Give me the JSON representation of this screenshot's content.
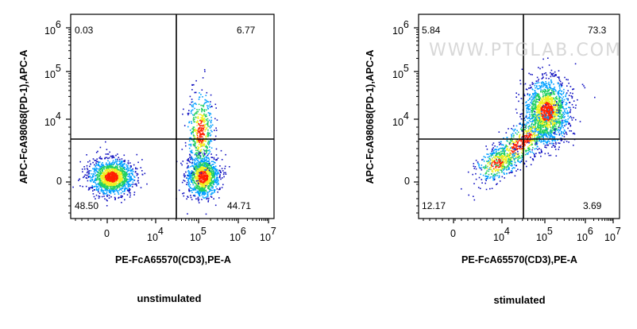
{
  "chart_data": [
    {
      "type": "scatter",
      "subtype": "flow-cytometry density dot plot",
      "caption": "unstimulated",
      "xlabel": "PE-FcA65570(CD3),PE-A",
      "ylabel": "APC-FcA98068(PD-1),APC-A",
      "x_scale": "biexponential",
      "y_scale": "biexponential",
      "x_ticks": [
        {
          "base": "0",
          "exp": ""
        },
        {
          "base": "10",
          "exp": "4"
        },
        {
          "base": "10",
          "exp": "5"
        },
        {
          "base": "10",
          "exp": "6"
        },
        {
          "base": "10",
          "exp": "7"
        }
      ],
      "y_ticks": [
        {
          "base": "0",
          "exp": ""
        },
        {
          "base": "10",
          "exp": "4"
        },
        {
          "base": "10",
          "exp": "5"
        },
        {
          "base": "10",
          "exp": "6"
        }
      ],
      "quadrants": {
        "upper_left": "0.03",
        "upper_right": "6.77",
        "lower_left": "48.50",
        "lower_right": "44.71"
      },
      "colormap": [
        "#1010c0",
        "#00a0ff",
        "#20d060",
        "#f0f020",
        "#ff2000"
      ]
    },
    {
      "type": "scatter",
      "subtype": "flow-cytometry density dot plot",
      "caption": "stimulated",
      "xlabel": "PE-FcA65570(CD3),PE-A",
      "ylabel": "APC-FcA98068(PD-1),APC-A",
      "x_scale": "biexponential",
      "y_scale": "biexponential",
      "x_ticks": [
        {
          "base": "0",
          "exp": ""
        },
        {
          "base": "10",
          "exp": "4"
        },
        {
          "base": "10",
          "exp": "5"
        },
        {
          "base": "10",
          "exp": "6"
        },
        {
          "base": "10",
          "exp": "7"
        }
      ],
      "y_ticks": [
        {
          "base": "0",
          "exp": ""
        },
        {
          "base": "10",
          "exp": "4"
        },
        {
          "base": "10",
          "exp": "5"
        },
        {
          "base": "10",
          "exp": "6"
        }
      ],
      "quadrants": {
        "upper_left": "5.84",
        "upper_right": "73.3",
        "lower_left": "12.17",
        "lower_right": "3.69"
      },
      "watermark": "WWW.PTGLAB.COM",
      "colormap": [
        "#1010c0",
        "#00a0ff",
        "#20d060",
        "#f0f020",
        "#ff2000"
      ]
    }
  ]
}
